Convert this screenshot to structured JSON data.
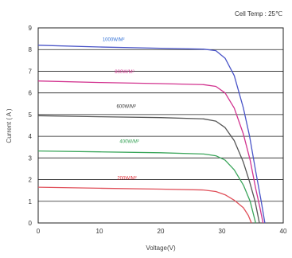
{
  "chart_data": {
    "type": "line",
    "note": "Cell Temp : 25℃",
    "xlabel": "Voltage(V)",
    "ylabel": "Current ( A )",
    "xlim": [
      0,
      40
    ],
    "ylim": [
      0,
      9
    ],
    "xticks": [
      "0",
      "10",
      "20",
      "30",
      "40"
    ],
    "yticks": [
      "0",
      "1",
      "2",
      "3",
      "4",
      "5",
      "6",
      "7",
      "8",
      "9"
    ],
    "grid": "horizontal",
    "series": [
      {
        "name": "1000W/M²",
        "color": "#4a55c8",
        "label_color": "#2f6fd6",
        "points": [
          [
            0,
            8.2
          ],
          [
            10,
            8.12
          ],
          [
            20,
            8.06
          ],
          [
            27,
            8.02
          ],
          [
            29,
            7.95
          ],
          [
            30.5,
            7.6
          ],
          [
            32,
            6.8
          ],
          [
            33.5,
            5.3
          ],
          [
            34.5,
            4.0
          ],
          [
            35.5,
            2.4
          ],
          [
            36.4,
            1.0
          ],
          [
            37.0,
            0.0
          ]
        ]
      },
      {
        "name": "800W/M²",
        "color": "#d2338f",
        "label_color": "#d2338f",
        "points": [
          [
            0,
            6.55
          ],
          [
            10,
            6.48
          ],
          [
            20,
            6.43
          ],
          [
            27,
            6.38
          ],
          [
            29,
            6.3
          ],
          [
            30.5,
            6.0
          ],
          [
            32,
            5.3
          ],
          [
            33.5,
            4.1
          ],
          [
            34.6,
            2.9
          ],
          [
            35.5,
            1.6
          ],
          [
            36.2,
            0.7
          ],
          [
            36.7,
            0.0
          ]
        ]
      },
      {
        "name": "600W/M²",
        "color": "#555555",
        "label_color": "#333333",
        "points": [
          [
            0,
            4.95
          ],
          [
            10,
            4.9
          ],
          [
            20,
            4.86
          ],
          [
            27,
            4.8
          ],
          [
            29,
            4.7
          ],
          [
            30.5,
            4.4
          ],
          [
            32,
            3.8
          ],
          [
            33.5,
            2.8
          ],
          [
            34.5,
            1.9
          ],
          [
            35.4,
            1.0
          ],
          [
            36.1,
            0.0
          ]
        ]
      },
      {
        "name": "400W/M²",
        "color": "#3aa55a",
        "label_color": "#2e9e50",
        "points": [
          [
            0,
            3.32
          ],
          [
            10,
            3.28
          ],
          [
            20,
            3.24
          ],
          [
            27,
            3.18
          ],
          [
            29,
            3.1
          ],
          [
            30.5,
            2.9
          ],
          [
            32,
            2.45
          ],
          [
            33.5,
            1.75
          ],
          [
            34.6,
            1.0
          ],
          [
            35.5,
            0.0
          ]
        ]
      },
      {
        "name": "200W/M²",
        "color": "#e0505a",
        "label_color": "#e0303a",
        "points": [
          [
            0,
            1.65
          ],
          [
            10,
            1.6
          ],
          [
            20,
            1.56
          ],
          [
            27,
            1.52
          ],
          [
            29,
            1.45
          ],
          [
            30.5,
            1.3
          ],
          [
            32,
            1.05
          ],
          [
            33.5,
            0.7
          ],
          [
            34.3,
            0.35
          ],
          [
            34.8,
            0.0
          ]
        ]
      }
    ],
    "label_positions": [
      [
        10.5,
        8.4
      ],
      [
        12.5,
        6.9
      ],
      [
        12.8,
        5.3
      ],
      [
        13.3,
        3.7
      ],
      [
        12.9,
        2.0
      ]
    ]
  }
}
